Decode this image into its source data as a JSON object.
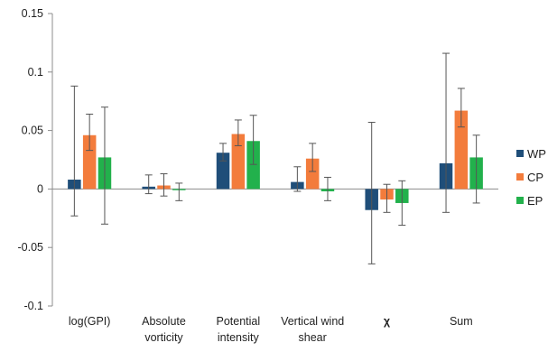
{
  "chart_data": {
    "type": "bar",
    "categories": [
      [
        "log(GPI)"
      ],
      [
        "Absolute",
        "vorticity"
      ],
      [
        "Potential",
        "intensity"
      ],
      [
        "Vertical wind",
        "shear"
      ],
      [
        "χ"
      ],
      [
        "Sum"
      ]
    ],
    "series": [
      {
        "name": "WP",
        "color": "#1f4e79",
        "values": [
          0.008,
          0.002,
          0.031,
          0.006,
          -0.018,
          0.022
        ],
        "err_low": [
          -0.023,
          -0.004,
          0.024,
          -0.002,
          -0.064,
          -0.02
        ],
        "err_high": [
          0.088,
          0.012,
          0.039,
          0.019,
          0.057,
          0.116
        ]
      },
      {
        "name": "CP",
        "color": "#f37c3c",
        "values": [
          0.046,
          0.003,
          0.047,
          0.026,
          -0.009,
          0.067
        ],
        "err_low": [
          0.033,
          -0.006,
          0.037,
          0.015,
          -0.02,
          0.053
        ],
        "err_high": [
          0.064,
          0.013,
          0.059,
          0.039,
          0.004,
          0.086
        ]
      },
      {
        "name": "EP",
        "color": "#22b14c",
        "values": [
          0.027,
          -0.001,
          0.041,
          -0.002,
          -0.012,
          0.027
        ],
        "err_low": [
          -0.03,
          -0.01,
          0.021,
          -0.01,
          -0.031,
          -0.012
        ],
        "err_high": [
          0.07,
          0.005,
          0.063,
          0.01,
          0.007,
          0.046
        ]
      }
    ],
    "ylim": [
      -0.1,
      0.15
    ],
    "yticks": [
      "0.15",
      "0.1",
      "0.05",
      "0",
      "-0.05",
      "-0.1"
    ],
    "ytick_values": [
      0.15,
      0.1,
      0.05,
      0,
      -0.05,
      -0.1
    ],
    "grid": false,
    "legend_position": "right"
  }
}
